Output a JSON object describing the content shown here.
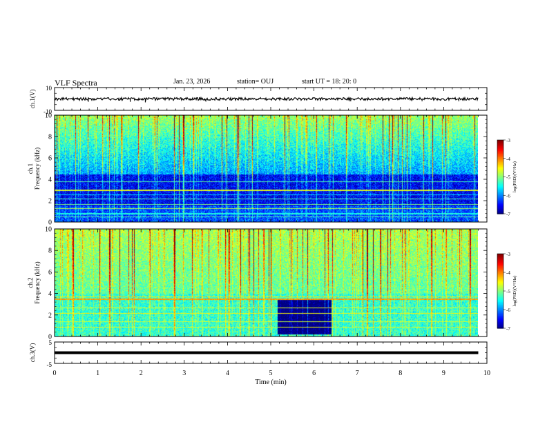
{
  "header": {
    "title": "VLF Spectra",
    "date": "Jan. 23, 2026",
    "station": "station= OUJ",
    "start": "start  UT  =   18: 20: 0"
  },
  "chart_data": [
    {
      "type": "line",
      "panel": "ch1-waveform",
      "ylabel": "ch.1(V)",
      "ylim": [
        -10,
        10
      ],
      "yticks": [
        "10",
        "-10"
      ],
      "xlim": [
        0,
        10
      ],
      "trace_level": 0.0,
      "spikes": [
        {
          "x": 0.78,
          "y": -2.5
        },
        {
          "x": 1.75,
          "y": -2.5
        },
        {
          "x": 2.1,
          "y": -3.0
        },
        {
          "x": 3.5,
          "y": -2.3
        },
        {
          "x": 3.35,
          "y": 1.5
        },
        {
          "x": 6.85,
          "y": -2.0
        },
        {
          "x": 8.5,
          "y": -2.0
        },
        {
          "x": 9.35,
          "y": -2.0
        }
      ]
    },
    {
      "type": "heatmap",
      "panel": "ch1-spectrogram",
      "ylabel": "ch.1\nFrequency (kHz)",
      "xlim": [
        0,
        10
      ],
      "ylim": [
        0,
        10
      ],
      "yticks": [
        "0",
        "2",
        "4",
        "6",
        "8",
        "10"
      ],
      "colorbar": {
        "label": "log(PSD)(V²/Hz)",
        "range": [
          -7,
          -3
        ],
        "ticks": [
          "-3",
          "-4",
          "-5",
          "-6",
          "-7"
        ]
      }
    },
    {
      "type": "heatmap",
      "panel": "ch2-spectrogram",
      "ylabel": "ch.2\nFrequency (kHz)",
      "xlim": [
        0,
        10
      ],
      "ylim": [
        0,
        10
      ],
      "yticks": [
        "0",
        "2",
        "4",
        "6",
        "8",
        "10"
      ],
      "quiet_interval": [
        5.15,
        6.4
      ],
      "colorbar": {
        "label": "log(PSD)(V²/Hz)",
        "range": [
          -7,
          -3
        ],
        "ticks": [
          "-3",
          "-4",
          "-5",
          "-6",
          "-7"
        ]
      }
    },
    {
      "type": "line",
      "panel": "ch3-waveform",
      "ylabel": "ch.3(V)",
      "ylim": [
        -5,
        5
      ],
      "yticks": [
        "5",
        "-5"
      ],
      "xlim": [
        0,
        10
      ],
      "trace_level": 0.0
    }
  ],
  "xaxis": {
    "label": "Time (min)",
    "ticks": [
      "0",
      "1",
      "2",
      "3",
      "4",
      "5",
      "6",
      "7",
      "8",
      "9",
      "10"
    ]
  },
  "data_end_min": 9.8
}
